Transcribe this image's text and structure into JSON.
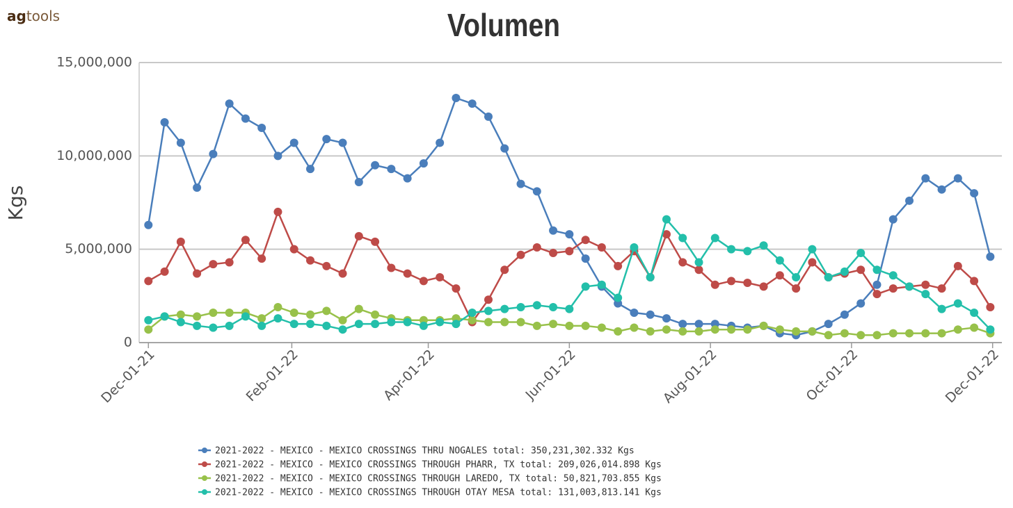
{
  "logo": {
    "bold": "ag",
    "rest": "tools"
  },
  "chart_data": {
    "type": "line",
    "title": "Volumen",
    "y_label": "Kgs",
    "grid": true,
    "legend": "bottom",
    "x": [
      "2021-12-01",
      "2021-12-08",
      "2021-12-15",
      "2021-12-22",
      "2021-12-29",
      "2022-01-05",
      "2022-01-12",
      "2022-01-19",
      "2022-01-26",
      "2022-02-02",
      "2022-02-09",
      "2022-02-16",
      "2022-02-23",
      "2022-03-02",
      "2022-03-09",
      "2022-03-16",
      "2022-03-23",
      "2022-03-30",
      "2022-04-06",
      "2022-04-13",
      "2022-04-20",
      "2022-04-27",
      "2022-05-04",
      "2022-05-11",
      "2022-05-18",
      "2022-05-25",
      "2022-06-01",
      "2022-06-08",
      "2022-06-15",
      "2022-06-22",
      "2022-06-29",
      "2022-07-06",
      "2022-07-13",
      "2022-07-20",
      "2022-07-27",
      "2022-08-03",
      "2022-08-10",
      "2022-08-17",
      "2022-08-24",
      "2022-08-31",
      "2022-09-07",
      "2022-09-14",
      "2022-09-21",
      "2022-09-28",
      "2022-10-05",
      "2022-10-12",
      "2022-10-19",
      "2022-10-26",
      "2022-11-02",
      "2022-11-09",
      "2022-11-16",
      "2022-11-23",
      "2022-11-30"
    ],
    "xlim": [
      "2021-11-27",
      "2022-12-05"
    ],
    "xticks": [
      {
        "value": "2021-12-01",
        "label": "Dec-01-21"
      },
      {
        "value": "2022-02-01",
        "label": "Feb-01-22"
      },
      {
        "value": "2022-04-01",
        "label": "Apr-01-22"
      },
      {
        "value": "2022-06-01",
        "label": "Jun-01-22"
      },
      {
        "value": "2022-08-01",
        "label": "Aug-01-22"
      },
      {
        "value": "2022-10-01",
        "label": "Oct-01-22"
      },
      {
        "value": "2022-12-01",
        "label": "Dec-01-22"
      }
    ],
    "ylim": [
      0,
      15000000
    ],
    "yticks": [
      0,
      {
        "value": 5000000,
        "label": "5,000,000"
      },
      {
        "value": 10000000,
        "label": "10,000,000"
      },
      {
        "value": 15000000,
        "label": "15,000,000"
      }
    ],
    "series": [
      {
        "name": "2021-2022 - MEXICO - MEXICO CROSSINGS THRU NOGALES total: 350,231,302.332 Kgs",
        "color": "#4a7ebb",
        "values": [
          6300000,
          11800000,
          10700000,
          8300000,
          10100000,
          12800000,
          12000000,
          11500000,
          10000000,
          10700000,
          9300000,
          10900000,
          10700000,
          8600000,
          9500000,
          9300000,
          8800000,
          9600000,
          10700000,
          13100000,
          12800000,
          12100000,
          10400000,
          8500000,
          8100000,
          6000000,
          5800000,
          4500000,
          3000000,
          2100000,
          1600000,
          1500000,
          1300000,
          1000000,
          1000000,
          1000000,
          900000,
          800000,
          900000,
          500000,
          400000,
          600000,
          1000000,
          1500000,
          2100000,
          3100000,
          6600000,
          7600000,
          8800000,
          8200000,
          8800000,
          8000000,
          4600000
        ]
      },
      {
        "name": "2021-2022 - MEXICO - MEXICO CROSSINGS THROUGH PHARR, TX total: 209,026,014.898 Kgs",
        "color": "#be4b48",
        "values": [
          3300000,
          3800000,
          5400000,
          3700000,
          4200000,
          4300000,
          5500000,
          4500000,
          7000000,
          5000000,
          4400000,
          4100000,
          3700000,
          5700000,
          5400000,
          4000000,
          3700000,
          3300000,
          3500000,
          2900000,
          1100000,
          2300000,
          3900000,
          4700000,
          5100000,
          4800000,
          4900000,
          5500000,
          5100000,
          4100000,
          4900000,
          3500000,
          5800000,
          4300000,
          3900000,
          3100000,
          3300000,
          3200000,
          3000000,
          3600000,
          2900000,
          4300000,
          3500000,
          3700000,
          3900000,
          2600000,
          2900000,
          3000000,
          3100000,
          2900000,
          4100000,
          3300000,
          1900000
        ]
      },
      {
        "name": "2021-2022 - MEXICO - MEXICO CROSSINGS THROUGH LAREDO, TX total: 50,821,703.855 Kgs",
        "color": "#98c14a",
        "values": [
          700000,
          1400000,
          1500000,
          1400000,
          1600000,
          1600000,
          1600000,
          1300000,
          1900000,
          1600000,
          1500000,
          1700000,
          1200000,
          1800000,
          1500000,
          1300000,
          1200000,
          1200000,
          1200000,
          1300000,
          1200000,
          1100000,
          1100000,
          1100000,
          900000,
          1000000,
          900000,
          900000,
          800000,
          600000,
          800000,
          600000,
          700000,
          600000,
          600000,
          700000,
          700000,
          700000,
          900000,
          700000,
          600000,
          600000,
          400000,
          500000,
          400000,
          400000,
          500000,
          500000,
          500000,
          500000,
          700000,
          800000,
          500000
        ]
      },
      {
        "name": "2021-2022 - MEXICO - MEXICO CROSSINGS THROUGH OTAY MESA total: 131,003,813.141 Kgs",
        "color": "#23bfaa",
        "values": [
          1200000,
          1400000,
          1100000,
          900000,
          800000,
          900000,
          1400000,
          900000,
          1300000,
          1000000,
          1000000,
          900000,
          700000,
          1000000,
          1000000,
          1100000,
          1100000,
          900000,
          1100000,
          1000000,
          1600000,
          1700000,
          1800000,
          1900000,
          2000000,
          1900000,
          1800000,
          3000000,
          3100000,
          2400000,
          5100000,
          3500000,
          6600000,
          5600000,
          4300000,
          5600000,
          5000000,
          4900000,
          5200000,
          4400000,
          3500000,
          5000000,
          3500000,
          3800000,
          4800000,
          3900000,
          3600000,
          3000000,
          2600000,
          1800000,
          2100000,
          1600000,
          700000
        ]
      }
    ]
  }
}
